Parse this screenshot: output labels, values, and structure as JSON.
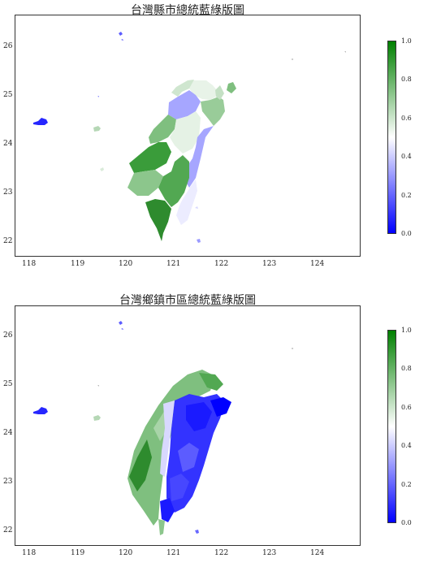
{
  "maps": [
    {
      "title": "台灣縣市總統藍綠版圖",
      "x_ticks": [
        "118",
        "119",
        "120",
        "121",
        "122",
        "123",
        "124"
      ],
      "y_ticks": [
        "22",
        "23",
        "24",
        "25",
        "26"
      ],
      "colorbar_ticks": [
        "0.0",
        "0.2",
        "0.4",
        "0.6",
        "0.8",
        "1.0"
      ]
    },
    {
      "title": "台灣鄉鎮市區總統藍綠版圖",
      "x_ticks": [
        "118",
        "119",
        "120",
        "121",
        "122",
        "123",
        "124"
      ],
      "y_ticks": [
        "22",
        "23",
        "24",
        "25",
        "26"
      ],
      "colorbar_ticks": [
        "0.0",
        "0.2",
        "0.4",
        "0.6",
        "0.8",
        "1.0"
      ]
    }
  ],
  "colors": {
    "blue_end": "#0000ff",
    "mid": "#ffffff",
    "green_end": "#008000"
  }
}
